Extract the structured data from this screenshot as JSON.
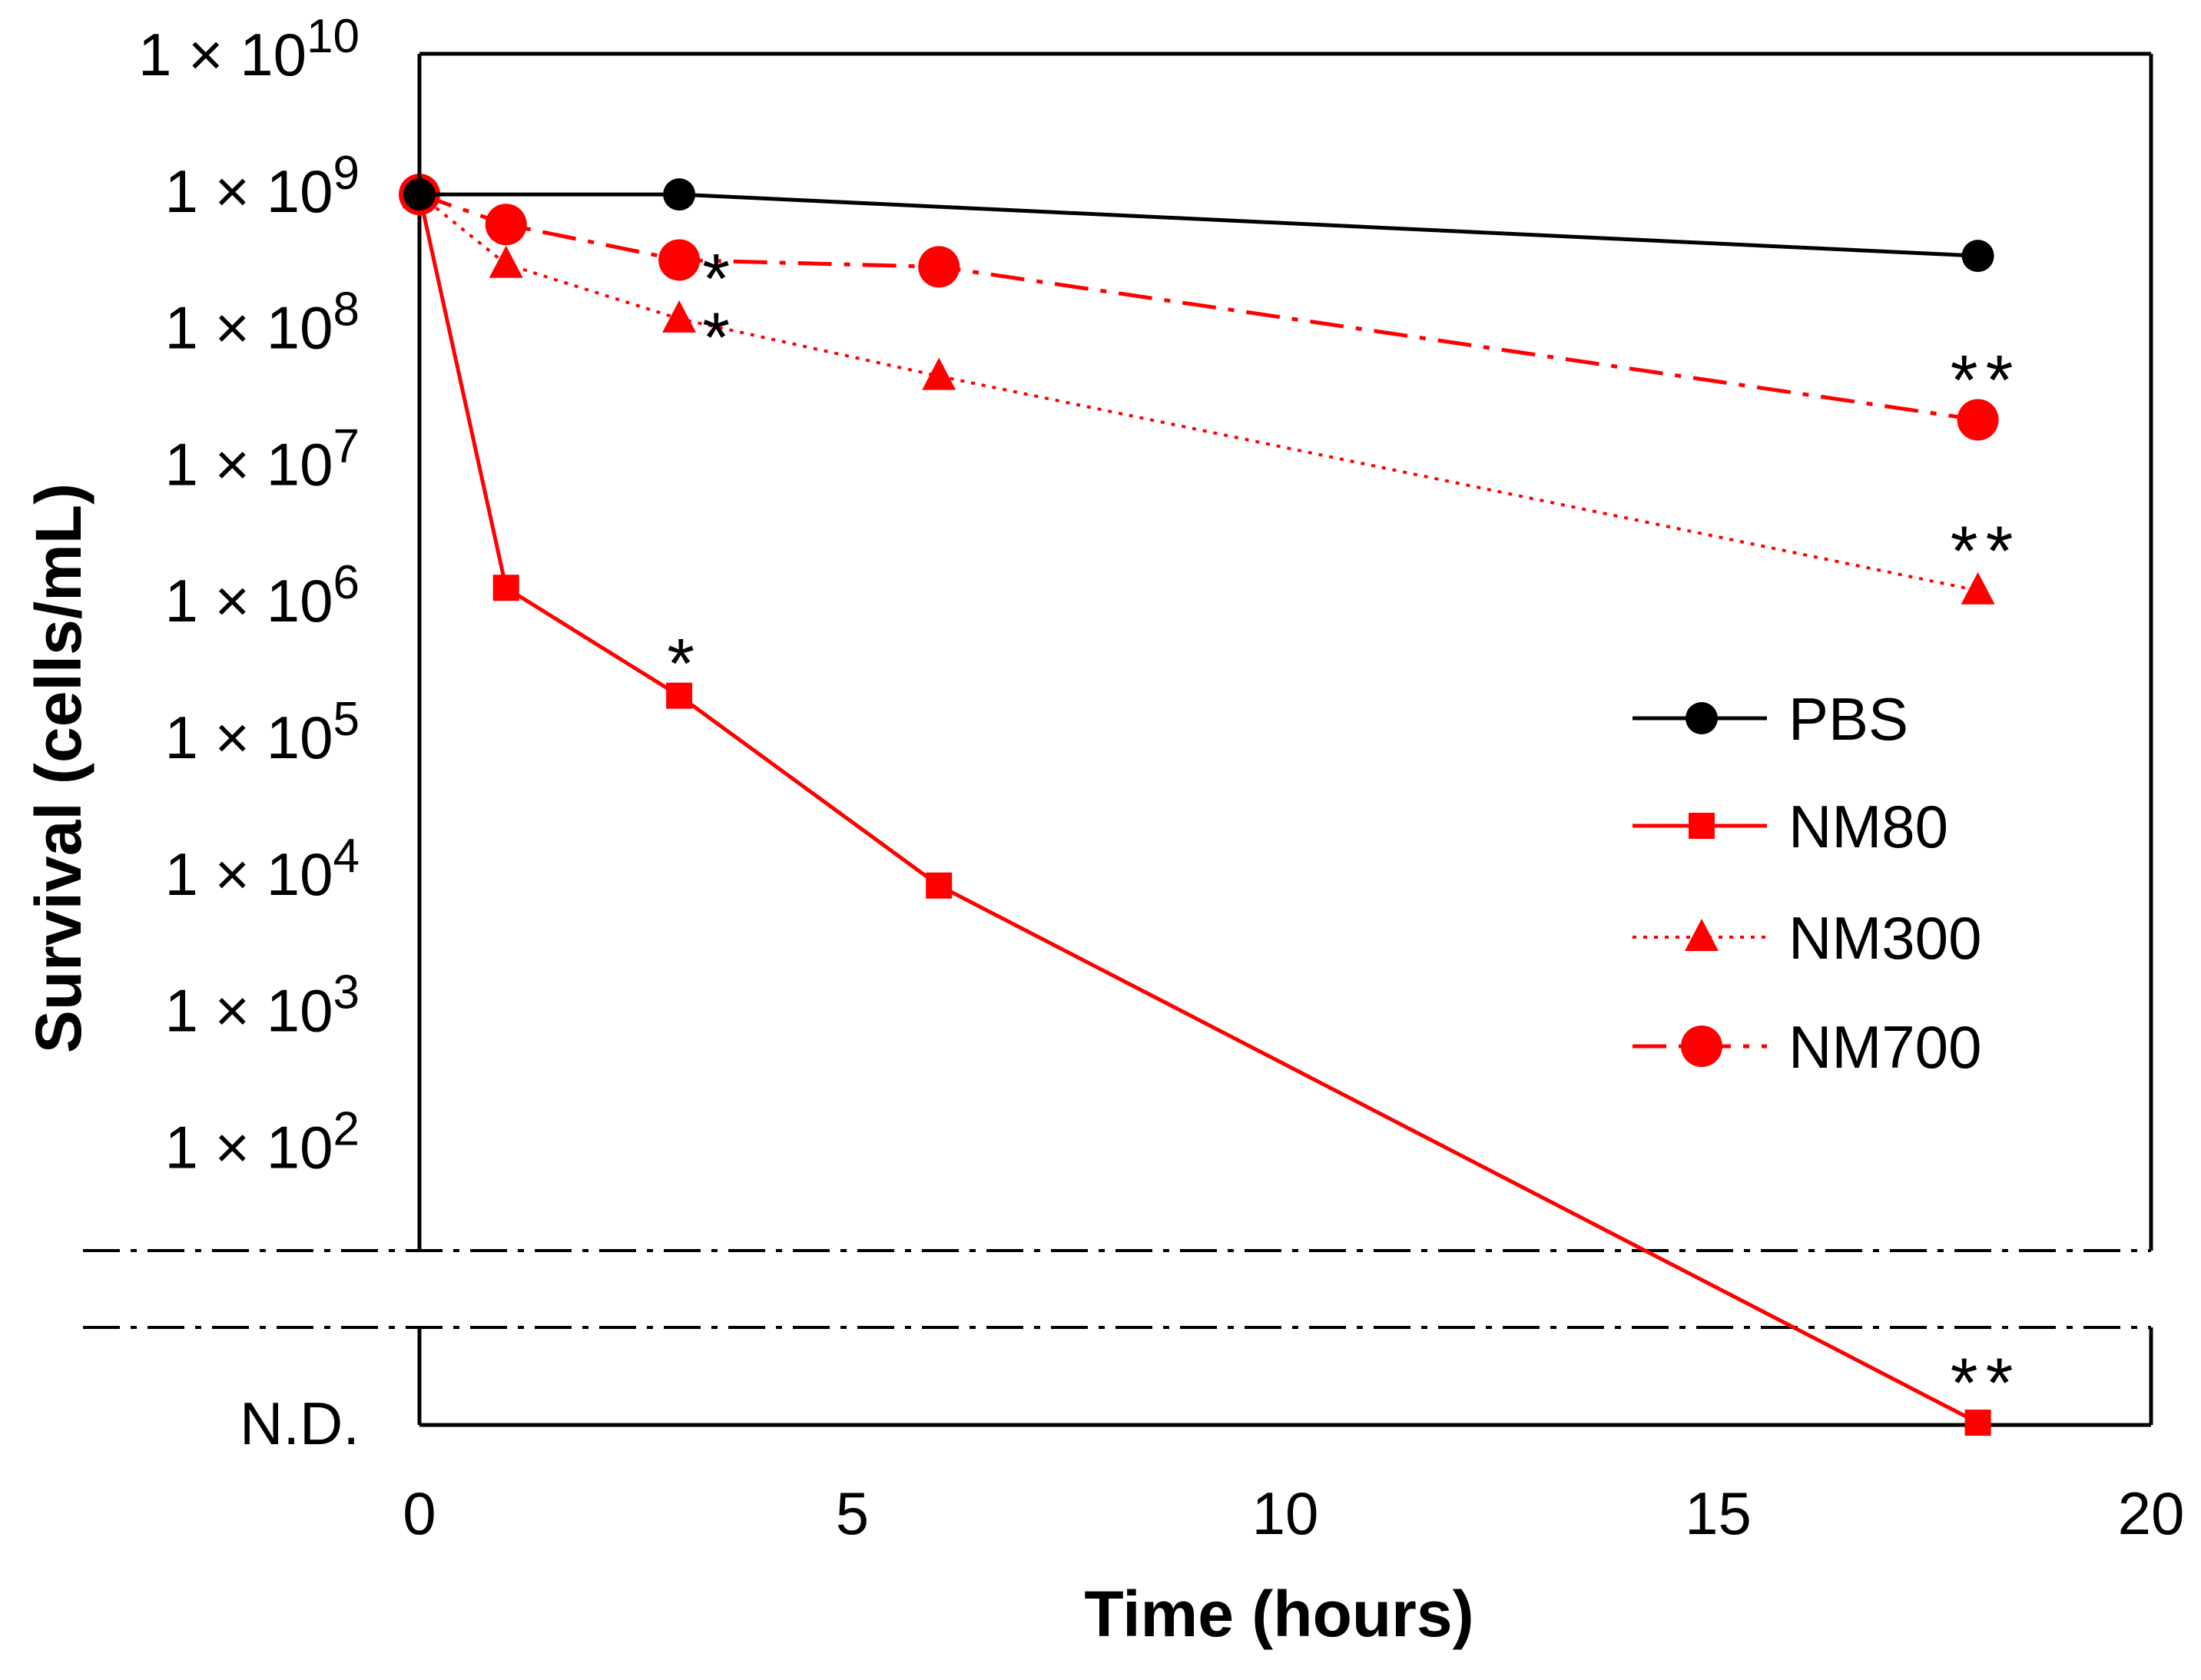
{
  "chart_data": {
    "type": "line",
    "title": "",
    "xlabel": "Time (hours)",
    "ylabel": "Survival (cells/mL)",
    "xlim": [
      0,
      20
    ],
    "x_ticks": [
      "0",
      "5",
      "10",
      "15",
      "20"
    ],
    "y_scale": "log",
    "ylim_log10": [
      1.1,
      10
    ],
    "y_tick_base": "1 × 10",
    "y_ticks": [
      {
        "exp": 10,
        "exp_label": "10"
      },
      {
        "exp": 9,
        "exp_label": "9"
      },
      {
        "exp": 8,
        "exp_label": "8"
      },
      {
        "exp": 7,
        "exp_label": "7"
      },
      {
        "exp": 6,
        "exp_label": "6"
      },
      {
        "exp": 5,
        "exp_label": "5"
      },
      {
        "exp": 4,
        "exp_label": "4"
      },
      {
        "exp": 3,
        "exp_label": "3"
      },
      {
        "exp": 2,
        "exp_label": "2"
      }
    ],
    "nd_label": "N.D.",
    "axis_break": true,
    "series": [
      {
        "name": "PBS",
        "color": "#000000",
        "marker": "circle",
        "line_style": "solid",
        "points": [
          {
            "x": 0,
            "log10_y": 8.97
          },
          {
            "x": 3,
            "log10_y": 8.97
          },
          {
            "x": 18,
            "log10_y": 8.52
          }
        ]
      },
      {
        "name": "NM80",
        "color": "#ff0000",
        "marker": "square",
        "line_style": "solid",
        "points": [
          {
            "x": 0,
            "log10_y": 8.97
          },
          {
            "x": 1,
            "log10_y": 6.09
          },
          {
            "x": 3,
            "log10_y": 5.3,
            "annotation": "*"
          },
          {
            "x": 6,
            "log10_y": 3.91
          },
          {
            "x": 18,
            "log10_y": null,
            "nd": true,
            "annotation": "**"
          }
        ]
      },
      {
        "name": "NM300",
        "color": "#ff0000",
        "marker": "triangle",
        "line_style": "dotted",
        "points": [
          {
            "x": 0,
            "log10_y": 8.97
          },
          {
            "x": 1,
            "log10_y": 8.46
          },
          {
            "x": 3,
            "log10_y": 8.06,
            "annotation": "*"
          },
          {
            "x": 6,
            "log10_y": 7.64
          },
          {
            "x": 18,
            "log10_y": 6.07,
            "annotation": "**"
          }
        ]
      },
      {
        "name": "NM700",
        "color": "#ff0000",
        "marker": "circle",
        "line_style": "dash-dot",
        "points": [
          {
            "x": 0,
            "log10_y": 8.97
          },
          {
            "x": 1,
            "log10_y": 8.75
          },
          {
            "x": 3,
            "log10_y": 8.49,
            "annotation": "*"
          },
          {
            "x": 6,
            "log10_y": 8.44
          },
          {
            "x": 18,
            "log10_y": 7.32,
            "annotation": "**"
          }
        ]
      }
    ],
    "legend_position": "right-middle"
  }
}
